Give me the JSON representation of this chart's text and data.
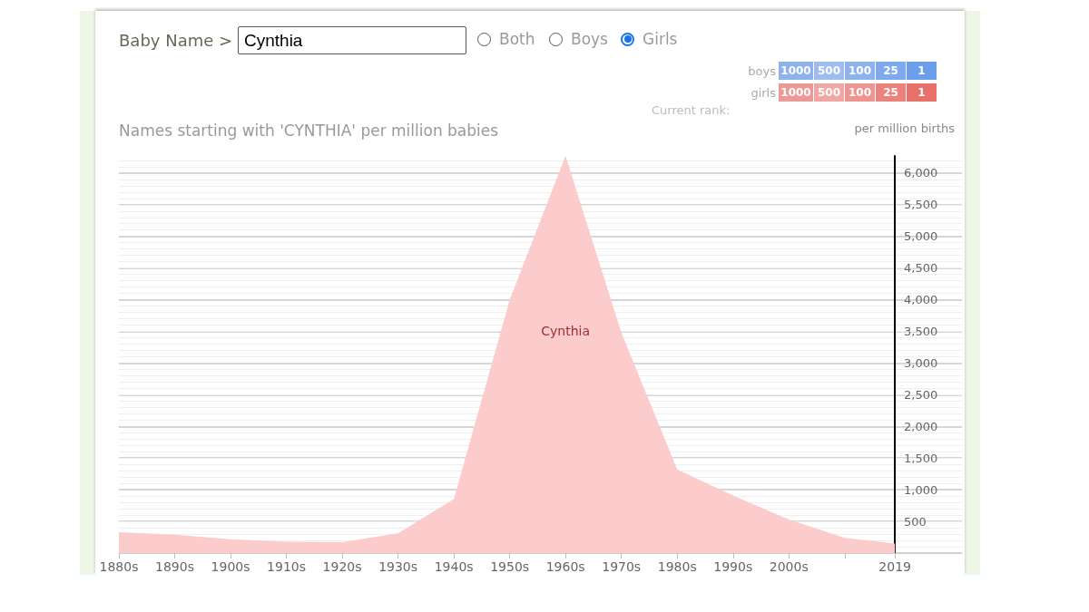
{
  "chart_data": {
    "type": "area",
    "title": "Names starting with 'CYNTHIA' per million babies",
    "ylabel": "per million births",
    "annotations": [
      "Baby Name >",
      "Cynthia",
      "Both",
      "Boys",
      "Girls",
      "boys",
      "1000",
      "500",
      "100",
      "25",
      "1",
      "girls",
      "1000",
      "500",
      "100",
      "25",
      "1",
      "Current rank:"
    ],
    "x": [
      1880,
      1890,
      1900,
      1910,
      1920,
      1930,
      1940,
      1950,
      1960,
      1970,
      1980,
      1990,
      2000,
      2010,
      2019
    ],
    "series": [
      {
        "name": "Cynthia",
        "color": "#fccbcc",
        "values": [
          330,
          290,
          220,
          180,
          170,
          310,
          850,
          4000,
          6270,
          3480,
          1320,
          910,
          530,
          240,
          150
        ]
      }
    ],
    "xlim": [
      1880,
      2031
    ],
    "xticks": [
      {
        "value": 1880,
        "label": "1880s"
      },
      {
        "value": 1890,
        "label": "1890s"
      },
      {
        "value": 1900,
        "label": "1900s"
      },
      {
        "value": 1910,
        "label": "1910s"
      },
      {
        "value": 1920,
        "label": "1920s"
      },
      {
        "value": 1930,
        "label": "1930s"
      },
      {
        "value": 1940,
        "label": "1940s"
      },
      {
        "value": 1950,
        "label": "1950s"
      },
      {
        "value": 1960,
        "label": "1960s"
      },
      {
        "value": 1970,
        "label": "1970s"
      },
      {
        "value": 1980,
        "label": "1980s"
      },
      {
        "value": 1990,
        "label": "1990s"
      },
      {
        "value": 2000,
        "label": "2000s"
      },
      {
        "value": 2010,
        "label": null
      },
      {
        "value": 2019,
        "label": "2019"
      }
    ],
    "ylim": [
      0,
      6270
    ],
    "yticks": [
      {
        "value": 0,
        "label": null
      },
      {
        "value": 500,
        "label": "500"
      },
      {
        "value": 1000,
        "label": "1,000"
      },
      {
        "value": 1500,
        "label": "1,500"
      },
      {
        "value": 2000,
        "label": "2,000"
      },
      {
        "value": 2500,
        "label": "2,500"
      },
      {
        "value": 3000,
        "label": "3,000"
      },
      {
        "value": 3500,
        "label": "3,500"
      },
      {
        "value": 4000,
        "label": "4,000"
      },
      {
        "value": 4500,
        "label": "4,500"
      },
      {
        "value": 5000,
        "label": "5,000"
      },
      {
        "value": 5500,
        "label": "5,500"
      },
      {
        "value": 6000,
        "label": "6,000"
      }
    ],
    "grid": "y",
    "legend": false,
    "marker": "none"
  }
}
